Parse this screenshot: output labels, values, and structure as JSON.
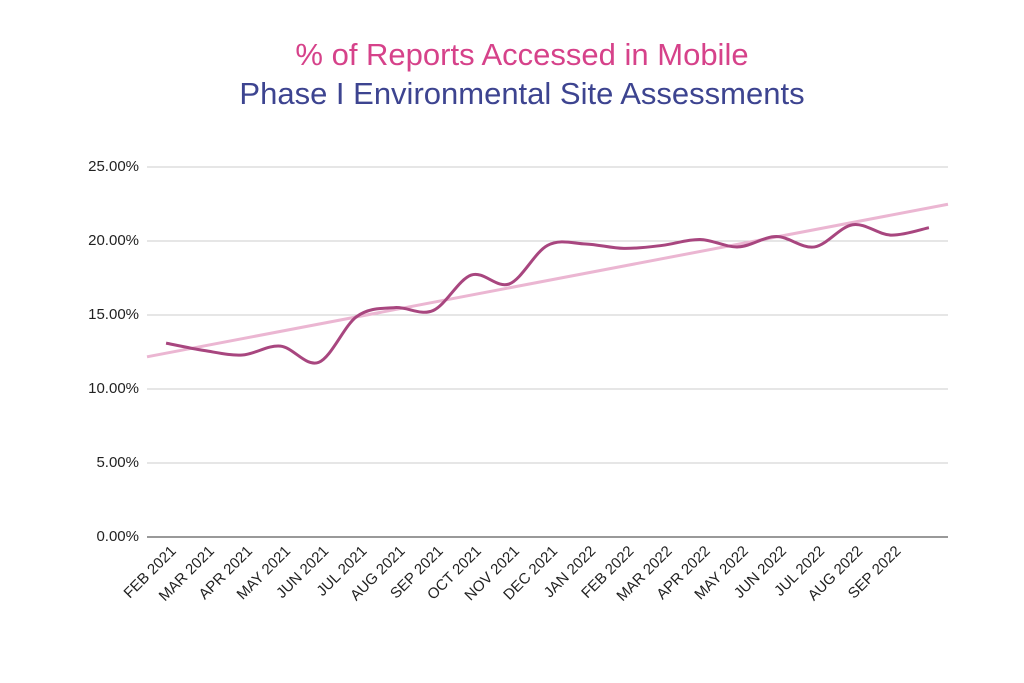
{
  "chart_data": {
    "type": "line",
    "title": "% of Reports Accessed in Mobile",
    "subtitle": "Phase I Environmental Site Assessments",
    "categories": [
      "FEB 2021",
      "MAR 2021",
      "APR 2021",
      "MAY 2021",
      "JUN 2021",
      "JUL 2021",
      "AUG 2021",
      "SEP 2021",
      "OCT 2021",
      "NOV 2021",
      "DEC 2021",
      "JAN 2022",
      "FEB 2022",
      "MAR 2022",
      "APR 2022",
      "MAY 2022",
      "JUN 2022",
      "JUL 2022",
      "AUG 2022",
      "SEP 2022",
      null
    ],
    "series": [
      {
        "name": "Mobile",
        "color": "#a8467f",
        "values": [
          13.1,
          12.6,
          12.3,
          12.9,
          11.8,
          14.9,
          15.5,
          15.3,
          17.7,
          17.1,
          19.7,
          19.8,
          19.5,
          19.7,
          20.1,
          19.6,
          20.3,
          19.6,
          21.1,
          20.4,
          20.9
        ]
      }
    ],
    "trendline": true,
    "trendline_color": "#ebb6d2",
    "ylim": [
      0,
      25
    ],
    "yticks": [
      {
        "value": 0,
        "label": "0.00%"
      },
      {
        "value": 5,
        "label": "5.00%"
      },
      {
        "value": 10,
        "label": "10.00%"
      },
      {
        "value": 15,
        "label": "15.00%"
      },
      {
        "value": 20,
        "label": "20.00%"
      },
      {
        "value": 25,
        "label": "25.00%"
      }
    ],
    "grid": true
  }
}
